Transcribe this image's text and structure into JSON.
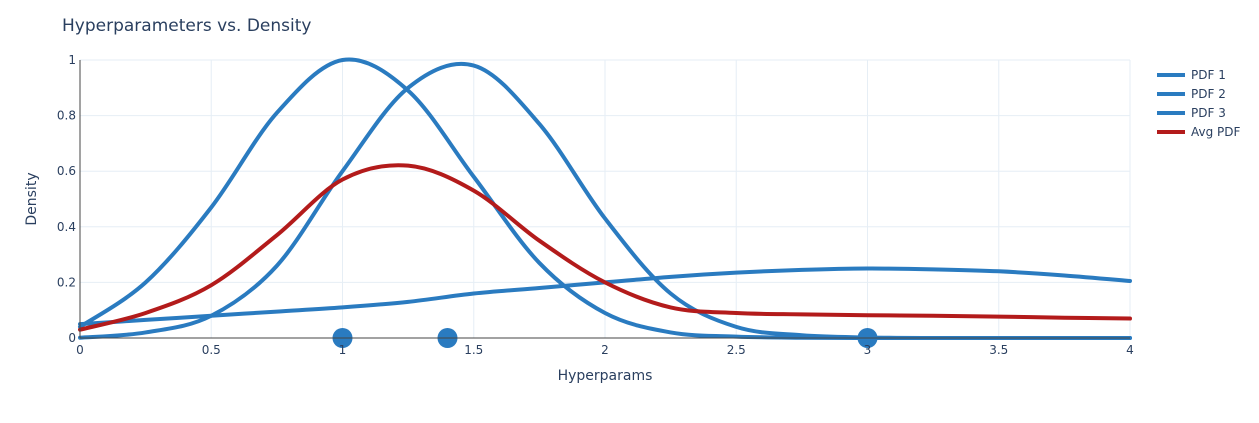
{
  "chart_data": {
    "type": "line",
    "title": "Hyperparameters vs. Density",
    "xlabel": "Hyperparams",
    "ylabel": "Density",
    "xlim": [
      0,
      4
    ],
    "ylim": [
      0,
      1
    ],
    "x_ticks": [
      "0",
      "0.5",
      "1",
      "1.5",
      "2",
      "2.5",
      "3",
      "3.5",
      "4"
    ],
    "y_ticks": [
      "0",
      "0.2",
      "0.4",
      "0.6",
      "0.8",
      "1"
    ],
    "grid": true,
    "legend_position": "top-right",
    "x": [
      0,
      0.25,
      0.5,
      0.75,
      1,
      1.25,
      1.5,
      1.75,
      2,
      2.25,
      2.5,
      2.75,
      3,
      3.25,
      3.5,
      3.75,
      4
    ],
    "series": [
      {
        "name": "PDF 1",
        "color": "#2a7bc0",
        "values": [
          0.04,
          0.2,
          0.47,
          0.81,
          1.0,
          0.89,
          0.58,
          0.27,
          0.09,
          0.02,
          0.005,
          0.001,
          0,
          0,
          0,
          0,
          0
        ]
      },
      {
        "name": "PDF 2",
        "color": "#2a7bc0",
        "values": [
          0.001,
          0.02,
          0.08,
          0.26,
          0.6,
          0.9,
          0.98,
          0.77,
          0.43,
          0.16,
          0.04,
          0.01,
          0.002,
          0,
          0,
          0,
          0
        ]
      },
      {
        "name": "PDF 3",
        "color": "#2a7bc0",
        "values": [
          0.05,
          0.065,
          0.08,
          0.095,
          0.11,
          0.13,
          0.16,
          0.18,
          0.2,
          0.22,
          0.235,
          0.245,
          0.25,
          0.247,
          0.24,
          0.225,
          0.205
        ]
      },
      {
        "name": "Avg PDF",
        "color": "#b31b1b",
        "values": [
          0.03,
          0.09,
          0.19,
          0.37,
          0.57,
          0.62,
          0.53,
          0.35,
          0.2,
          0.11,
          0.09,
          0.085,
          0.082,
          0.08,
          0.077,
          0.073,
          0.07
        ]
      }
    ],
    "markers": {
      "color": "#2a7bc0",
      "x": [
        1,
        1.4,
        3
      ],
      "y": [
        0,
        0,
        0
      ]
    }
  }
}
